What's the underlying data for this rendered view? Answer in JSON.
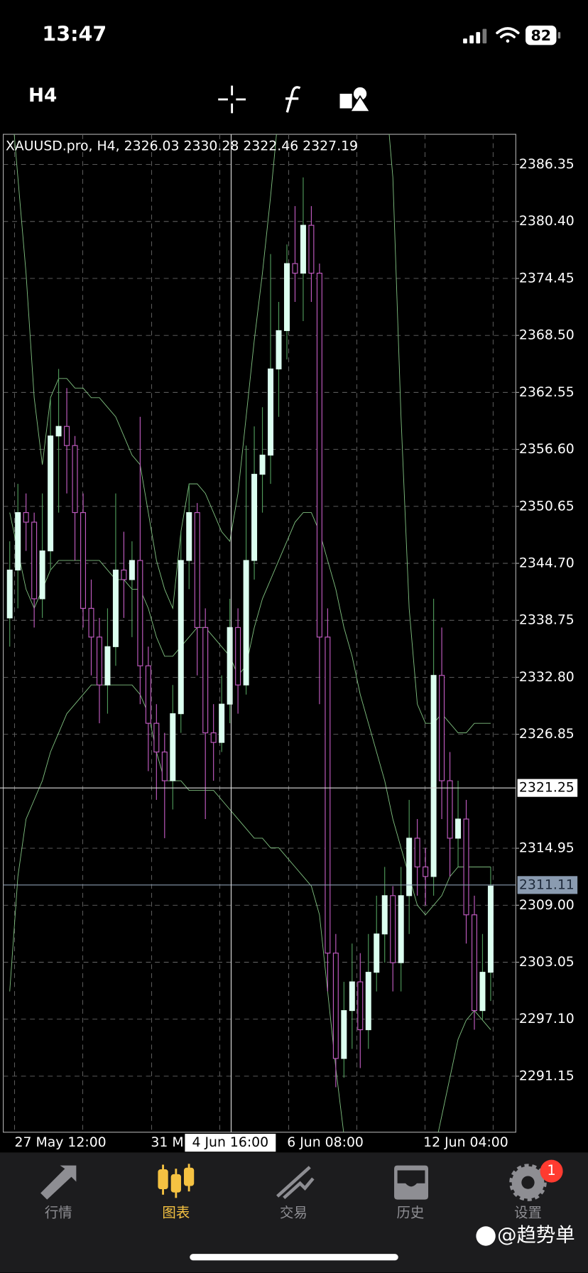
{
  "status_bar": {
    "time": "13:47",
    "battery": "82"
  },
  "toolbar": {
    "timeframe": "H4"
  },
  "chart_data": {
    "type": "candlestick",
    "title": "XAUUSD.pro, H4, 2326.03 2330.28 2322.46 2327.19",
    "open": [
      2339,
      2344,
      2350,
      2349,
      2341,
      2346,
      2358,
      2359,
      2357,
      2350,
      2340,
      2337,
      2332,
      2336,
      2344,
      2343,
      2345,
      2334,
      2328,
      2325,
      2322,
      2329,
      2345,
      2350,
      2338,
      2327,
      2326,
      2330,
      2338,
      2332,
      2345,
      2354,
      2356,
      2365,
      2369,
      2376,
      2375,
      2380,
      2375,
      2337,
      2304,
      2293,
      2298,
      2301,
      2296,
      2302,
      2306,
      2310,
      2303,
      2310,
      2316,
      2313,
      2312,
      2333,
      2322,
      2316,
      2318,
      2308,
      2298,
      2302
    ],
    "high": [
      2347,
      2353,
      2352,
      2350,
      2352,
      2362,
      2365,
      2363,
      2358,
      2352,
      2343,
      2339,
      2340,
      2352,
      2348,
      2347,
      2360,
      2336,
      2330,
      2327,
      2332,
      2348,
      2353,
      2351,
      2340,
      2330,
      2333,
      2341,
      2340,
      2357,
      2359,
      2361,
      2377,
      2372,
      2378,
      2382,
      2385,
      2382,
      2376,
      2340,
      2306,
      2301,
      2305,
      2304,
      2306,
      2310,
      2313,
      2311,
      2313,
      2320,
      2318,
      2315,
      2341,
      2338,
      2325,
      2322,
      2320,
      2310,
      2306,
      2313
    ],
    "low": [
      2336,
      2340,
      2346,
      2338,
      2339,
      2344,
      2350,
      2352,
      2345,
      2338,
      2333,
      2328,
      2329,
      2334,
      2339,
      2337,
      2330,
      2323,
      2320,
      2316,
      2319,
      2327,
      2342,
      2333,
      2318,
      2322,
      2325,
      2328,
      2329,
      2331,
      2343,
      2350,
      2353,
      2360,
      2366,
      2372,
      2370,
      2372,
      2330,
      2300,
      2290,
      2291,
      2294,
      2292,
      2294,
      2300,
      2303,
      2300,
      2300,
      2306,
      2310,
      2309,
      2310,
      2318,
      2312,
      2313,
      2305,
      2296,
      2297,
      2299
    ],
    "close": [
      2344,
      2350,
      2349,
      2341,
      2346,
      2358,
      2359,
      2357,
      2350,
      2340,
      2337,
      2332,
      2336,
      2344,
      2343,
      2345,
      2334,
      2328,
      2325,
      2322,
      2329,
      2345,
      2350,
      2338,
      2327,
      2326,
      2330,
      2338,
      2332,
      2345,
      2354,
      2356,
      2365,
      2369,
      2376,
      2375,
      2380,
      2375,
      2337,
      2304,
      2293,
      2298,
      2301,
      2296,
      2302,
      2306,
      2310,
      2303,
      2310,
      2316,
      2313,
      2312,
      2333,
      2322,
      2316,
      2318,
      2308,
      2298,
      2302,
      2311
    ],
    "bands": {
      "upper": [
        2395,
        2385,
        2375,
        2362,
        2355,
        2362,
        2364,
        2364,
        2363,
        2363,
        2362,
        2362,
        2361,
        2360,
        2358,
        2356,
        2355,
        2350,
        2345,
        2342,
        2340,
        2348,
        2353,
        2353,
        2352,
        2350,
        2348,
        2347,
        2352,
        2360,
        2368,
        2375,
        2383,
        2392,
        2400,
        2405,
        2408,
        2410,
        2410,
        2405,
        2402,
        2400,
        2400,
        2400,
        2400,
        2398,
        2395,
        2385,
        2360,
        2340,
        2330,
        2328,
        2328,
        2329,
        2328,
        2327,
        2327,
        2328,
        2328,
        2328
      ],
      "middle": [
        2350,
        2346,
        2342,
        2340,
        2342,
        2344,
        2345,
        2345,
        2345,
        2345,
        2345,
        2345,
        2344,
        2343,
        2343,
        2342,
        2342,
        2340,
        2337,
        2335,
        2335,
        2336,
        2337,
        2338,
        2338,
        2337,
        2336,
        2335,
        2333,
        2334,
        2338,
        2341,
        2343,
        2345,
        2347,
        2349,
        2350,
        2350,
        2348,
        2345,
        2342,
        2338,
        2335,
        2331,
        2328,
        2325,
        2322,
        2318,
        2315,
        2312,
        2309,
        2308,
        2309,
        2310,
        2312,
        2313,
        2313,
        2313,
        2313,
        2313
      ],
      "lower": [
        2300,
        2312,
        2318,
        2320,
        2322,
        2325,
        2327,
        2329,
        2330,
        2331,
        2332,
        2332,
        2332,
        2332,
        2332,
        2332,
        2331,
        2329,
        2325,
        2322,
        2322,
        2322,
        2321,
        2321,
        2321,
        2321,
        2320,
        2319,
        2318,
        2317,
        2316,
        2316,
        2315,
        2315,
        2314,
        2313,
        2312,
        2311,
        2308,
        2300,
        2292,
        2285,
        2280,
        2278,
        2276,
        2275,
        2274,
        2274,
        2275,
        2276,
        2278,
        2280,
        2283,
        2287,
        2291,
        2295,
        2297,
        2298,
        2297,
        2296
      ]
    },
    "ylim": [
      2285.3,
      2389.5
    ],
    "yticks": [
      2386.35,
      {
        "value": 2380.4,
        "label": "2380.40"
      },
      2374.45,
      {
        "value": 2368.5,
        "label": "2368.50"
      },
      2362.55,
      {
        "value": 2356.6,
        "label": "2356.60"
      },
      2350.65,
      {
        "value": 2344.7,
        "label": "2344.70"
      },
      2338.75,
      {
        "value": 2332.8,
        "label": "2332.80"
      },
      2326.85,
      2314.95,
      {
        "value": 2309,
        "label": "2309.00"
      },
      2303.05,
      {
        "value": 2297.1,
        "label": "2297.10"
      },
      2291.15
    ],
    "x_labels": [
      "27 May 12:00",
      "31 M",
      "6 Jun 08:00",
      "12 Jun 04:00"
    ],
    "crosshair": {
      "price": 2321.25,
      "time_label": "4 Jun 16:00"
    },
    "current_price": 2311.11,
    "grid": true,
    "bull_color": "#dcfff0",
    "bull_wick_color": "#4f9a5a",
    "bear_color": "#c25cc2",
    "band_color": "#7fbf7f"
  },
  "tab_bar": {
    "tabs": [
      "行情",
      "图表",
      "交易",
      "历史",
      "设置"
    ],
    "active": "图表",
    "badge": "1"
  },
  "watermark": "@趋势单"
}
